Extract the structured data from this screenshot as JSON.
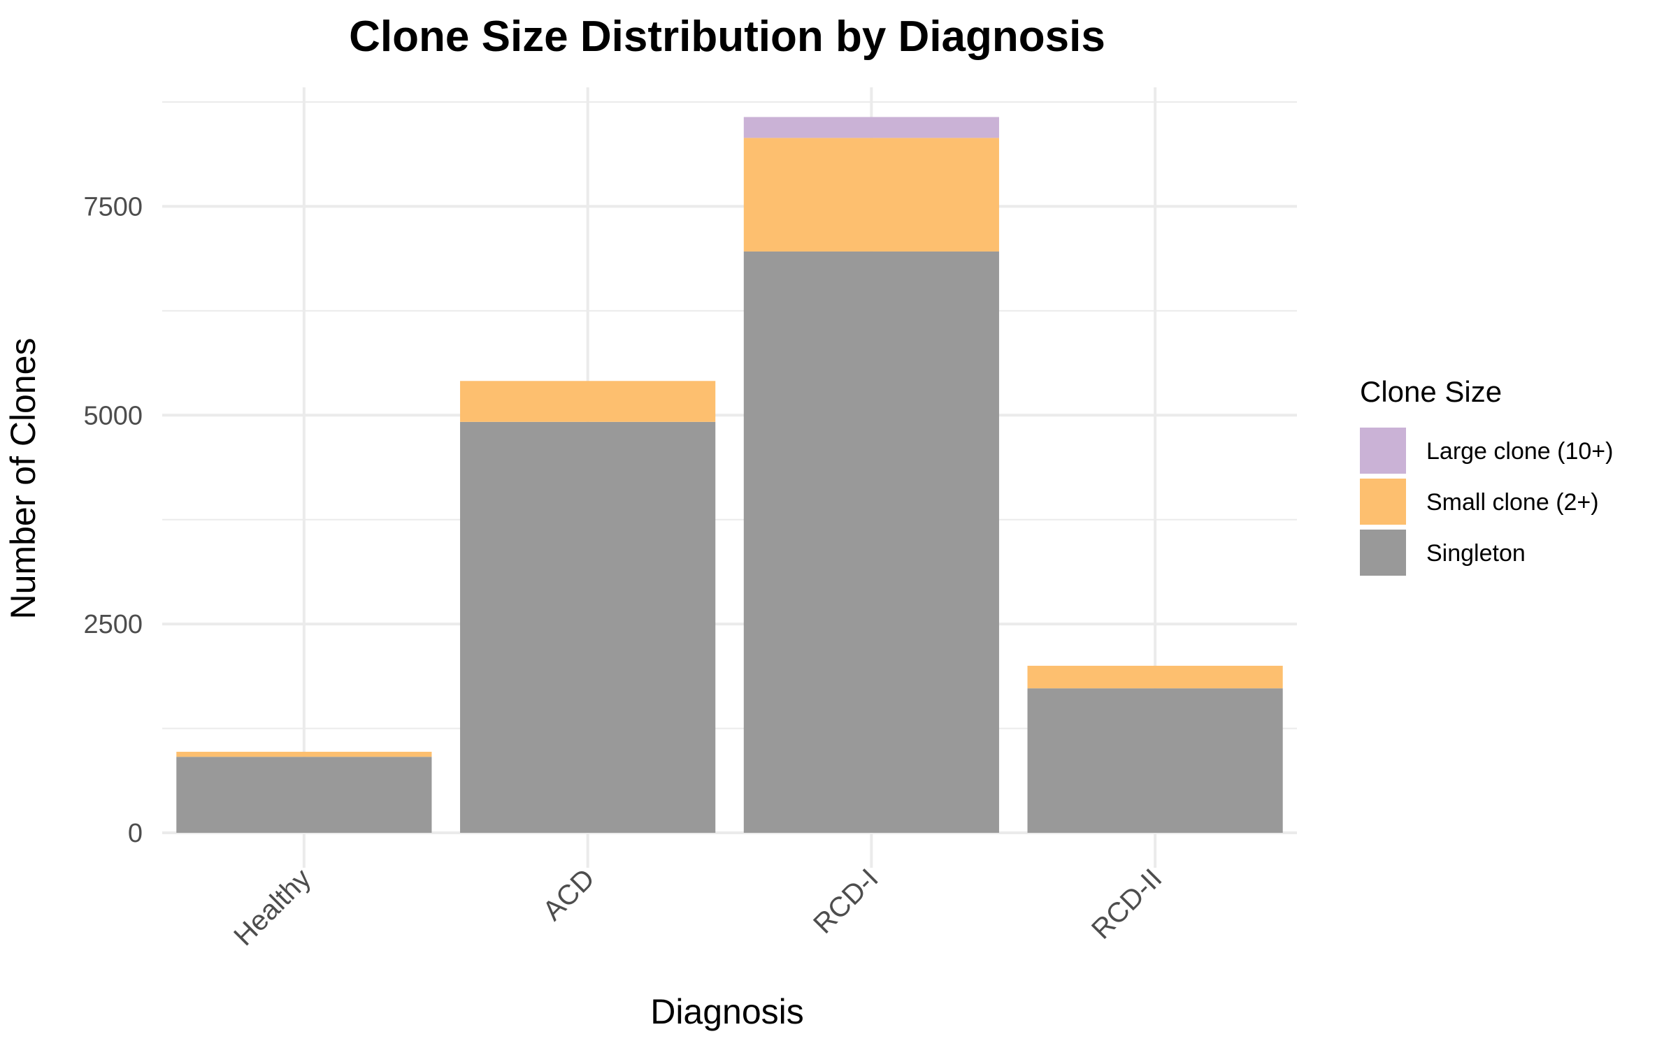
{
  "chart_data": {
    "type": "bar",
    "stacked": true,
    "title": "Clone Size Distribution by Diagnosis",
    "xlabel": "Diagnosis",
    "ylabel": "Number of Clones",
    "categories": [
      "Healthy",
      "ACD",
      "RCD-I",
      "RCD-II"
    ],
    "series": [
      {
        "name": "Singleton",
        "color": "#999999",
        "values": [
          910,
          4920,
          6960,
          1730
        ]
      },
      {
        "name": "Small clone (2+)",
        "color": "#fdbf6f",
        "values": [
          60,
          490,
          1360,
          270
        ]
      },
      {
        "name": "Large clone (10+)",
        "color": "#cab2d6",
        "values": [
          0,
          0,
          250,
          0
        ]
      }
    ],
    "ylim": [
      0,
      8800
    ],
    "yticks": [
      0,
      2500,
      5000,
      7500
    ],
    "grid": true,
    "legend": {
      "title": "Clone Size",
      "position": "right",
      "order": [
        "Large clone (10+)",
        "Small clone (2+)",
        "Singleton"
      ]
    }
  }
}
